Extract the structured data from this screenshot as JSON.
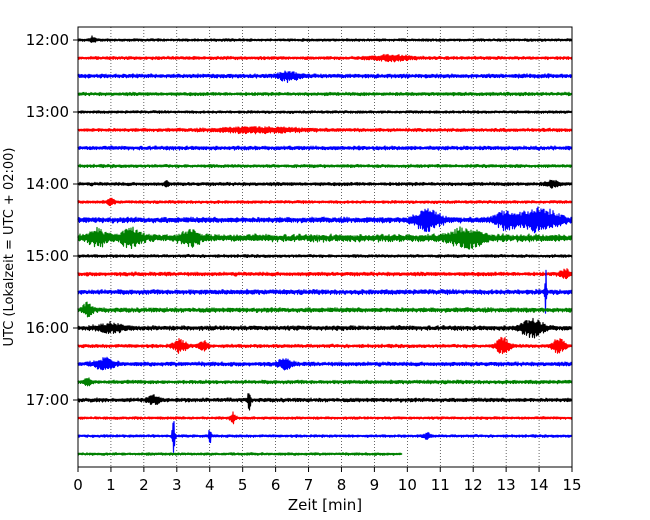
{
  "chart_data": {
    "type": "line",
    "title": "",
    "xlabel": "Zeit  [min]",
    "ylabel": "UTC (Lokalzeit = UTC + 02:00)",
    "xlim": [
      0,
      15
    ],
    "x_ticks": [
      "0",
      "1",
      "2",
      "3",
      "4",
      "5",
      "6",
      "7",
      "8",
      "9",
      "10",
      "11",
      "12",
      "13",
      "14",
      "15"
    ],
    "y_tick_labels": [
      "12:00",
      "13:00",
      "14:00",
      "15:00",
      "16:00",
      "17:00"
    ],
    "y_tick_rows": [
      0,
      4,
      8,
      12,
      16,
      20
    ],
    "grid": "vertical dotted",
    "row_interval_min": 15,
    "colors": [
      "#000000",
      "#ff0000",
      "#0000ff",
      "#008000"
    ],
    "rows": [
      {
        "label": "12:00",
        "color_index": 0,
        "end_min": 15,
        "noise": 1.0,
        "events": [
          {
            "t": 0.45,
            "a": 3.5,
            "w": 0.08
          }
        ]
      },
      {
        "label": "12:15",
        "color_index": 1,
        "end_min": 15,
        "noise": 1.2,
        "events": [
          {
            "t": 9.5,
            "a": 2.5,
            "w": 0.6
          }
        ]
      },
      {
        "label": "12:30",
        "color_index": 2,
        "end_min": 15,
        "noise": 1.6,
        "events": [
          {
            "t": 6.4,
            "a": 4.5,
            "w": 0.3
          }
        ]
      },
      {
        "label": "12:45",
        "color_index": 3,
        "end_min": 15,
        "noise": 1.3,
        "events": []
      },
      {
        "label": "13:00",
        "color_index": 0,
        "end_min": 15,
        "noise": 1.0,
        "events": []
      },
      {
        "label": "13:15",
        "color_index": 1,
        "end_min": 15,
        "noise": 1.3,
        "events": [
          {
            "t": 5.5,
            "a": 2.5,
            "w": 1.2
          }
        ]
      },
      {
        "label": "13:30",
        "color_index": 2,
        "end_min": 15,
        "noise": 1.5,
        "events": []
      },
      {
        "label": "13:45",
        "color_index": 3,
        "end_min": 15,
        "noise": 1.2,
        "events": []
      },
      {
        "label": "14:00",
        "color_index": 0,
        "end_min": 15,
        "noise": 1.3,
        "events": [
          {
            "t": 2.7,
            "a": 3,
            "w": 0.06
          },
          {
            "t": 14.4,
            "a": 3,
            "w": 0.2
          }
        ]
      },
      {
        "label": "14:15",
        "color_index": 1,
        "end_min": 15,
        "noise": 1.1,
        "events": [
          {
            "t": 1.0,
            "a": 3.5,
            "w": 0.1
          }
        ]
      },
      {
        "label": "14:30",
        "color_index": 2,
        "end_min": 15,
        "noise": 2.2,
        "events": [
          {
            "t": 10.6,
            "a": 10,
            "w": 0.4
          },
          {
            "t": 13.0,
            "a": 8,
            "w": 0.35
          },
          {
            "t": 14.0,
            "a": 11,
            "w": 0.6
          }
        ]
      },
      {
        "label": "14:45",
        "color_index": 3,
        "end_min": 15,
        "noise": 3.0,
        "events": [
          {
            "t": 0.6,
            "a": 7,
            "w": 0.3
          },
          {
            "t": 1.6,
            "a": 9,
            "w": 0.3
          },
          {
            "t": 3.4,
            "a": 6,
            "w": 0.3
          },
          {
            "t": 11.8,
            "a": 9,
            "w": 0.5
          }
        ]
      },
      {
        "label": "15:00",
        "color_index": 0,
        "end_min": 15,
        "noise": 1.1,
        "events": []
      },
      {
        "label": "15:15",
        "color_index": 1,
        "end_min": 15,
        "noise": 1.5,
        "events": [
          {
            "t": 14.8,
            "a": 4,
            "w": 0.15
          }
        ]
      },
      {
        "label": "15:30",
        "color_index": 2,
        "end_min": 15,
        "noise": 1.9,
        "events": [
          {
            "t": 14.2,
            "a": 24,
            "w": 0.03
          }
        ]
      },
      {
        "label": "15:45",
        "color_index": 3,
        "end_min": 15,
        "noise": 1.8,
        "events": [
          {
            "t": 0.3,
            "a": 6,
            "w": 0.15
          }
        ]
      },
      {
        "label": "16:00",
        "color_index": 0,
        "end_min": 15,
        "noise": 1.8,
        "events": [
          {
            "t": 1.0,
            "a": 4,
            "w": 0.4
          },
          {
            "t": 13.8,
            "a": 8,
            "w": 0.35
          }
        ]
      },
      {
        "label": "16:15",
        "color_index": 1,
        "end_min": 15,
        "noise": 1.3,
        "events": [
          {
            "t": 3.1,
            "a": 6,
            "w": 0.2
          },
          {
            "t": 3.8,
            "a": 5,
            "w": 0.15
          },
          {
            "t": 12.9,
            "a": 8,
            "w": 0.2
          },
          {
            "t": 14.6,
            "a": 7,
            "w": 0.2
          }
        ]
      },
      {
        "label": "16:30",
        "color_index": 2,
        "end_min": 15,
        "noise": 1.6,
        "events": [
          {
            "t": 0.8,
            "a": 5,
            "w": 0.3
          },
          {
            "t": 6.3,
            "a": 5,
            "w": 0.2
          }
        ]
      },
      {
        "label": "16:45",
        "color_index": 3,
        "end_min": 15,
        "noise": 1.4,
        "events": [
          {
            "t": 0.3,
            "a": 3.5,
            "w": 0.1
          }
        ]
      },
      {
        "label": "17:00",
        "color_index": 0,
        "end_min": 15,
        "noise": 1.5,
        "events": [
          {
            "t": 2.3,
            "a": 4,
            "w": 0.2
          },
          {
            "t": 5.2,
            "a": 9,
            "w": 0.05
          }
        ]
      },
      {
        "label": "17:15",
        "color_index": 1,
        "end_min": 15,
        "noise": 1.0,
        "events": [
          {
            "t": 4.7,
            "a": 5,
            "w": 0.08
          }
        ]
      },
      {
        "label": "17:30",
        "color_index": 2,
        "end_min": 15,
        "noise": 1.0,
        "events": [
          {
            "t": 2.9,
            "a": 16,
            "w": 0.04
          },
          {
            "t": 4.0,
            "a": 9,
            "w": 0.04
          },
          {
            "t": 10.6,
            "a": 3,
            "w": 0.1
          }
        ]
      },
      {
        "label": "17:45",
        "color_index": 3,
        "end_min": 9.85,
        "noise": 1.0,
        "events": []
      }
    ]
  }
}
